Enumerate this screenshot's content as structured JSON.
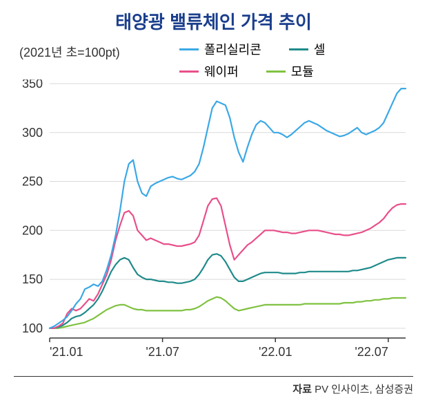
{
  "title": "태양광 밸류체인 가격 추이",
  "title_fontsize": 26,
  "title_color": "#1a3e8c",
  "subtitle": "(2021년 초=100pt)",
  "subtitle_fontsize": 18,
  "subtitle_color": "#333333",
  "legend": [
    {
      "label": "폴리실리콘",
      "color": "#3aa8e6"
    },
    {
      "label": "셀",
      "color": "#1f8a8a"
    },
    {
      "label": "웨이퍼",
      "color": "#e84f8a"
    },
    {
      "label": "모듈",
      "color": "#7fc241"
    }
  ],
  "legend_fontsize": 18,
  "chart": {
    "type": "line",
    "background_color": "#ffffff",
    "grid_color": "#d9d9d9",
    "axis_color": "#333333",
    "line_width": 2.2,
    "xlim": [
      0,
      82
    ],
    "ylim": [
      90,
      350
    ],
    "ytick_step": 50,
    "yticks": [
      100,
      150,
      200,
      250,
      300,
      350
    ],
    "xticks": [
      {
        "pos": 0,
        "label": "'21.01"
      },
      {
        "pos": 26,
        "label": "'21.07"
      },
      {
        "pos": 52,
        "label": "'22.01"
      },
      {
        "pos": 78,
        "label": "'22.07"
      }
    ],
    "series": {
      "polysilicon": {
        "color": "#3aa8e6",
        "values": [
          100,
          102,
          105,
          108,
          112,
          118,
          125,
          130,
          140,
          142,
          145,
          143,
          148,
          160,
          175,
          195,
          220,
          250,
          268,
          272,
          250,
          238,
          235,
          245,
          248,
          250,
          252,
          254,
          255,
          253,
          252,
          254,
          256,
          260,
          268,
          285,
          305,
          325,
          332,
          330,
          328,
          315,
          295,
          280,
          270,
          285,
          298,
          308,
          312,
          310,
          305,
          300,
          300,
          298,
          295,
          298,
          302,
          306,
          310,
          312,
          310,
          308,
          305,
          302,
          300,
          298,
          296,
          297,
          299,
          302,
          305,
          300,
          298,
          300,
          302,
          305,
          310,
          320,
          330,
          340,
          345,
          345
        ]
      },
      "wafer": {
        "color": "#e84f8a",
        "values": [
          100,
          100,
          102,
          105,
          115,
          120,
          118,
          120,
          125,
          130,
          128,
          135,
          145,
          155,
          170,
          190,
          205,
          218,
          220,
          215,
          200,
          195,
          190,
          192,
          190,
          188,
          186,
          186,
          185,
          184,
          184,
          185,
          186,
          188,
          195,
          210,
          225,
          232,
          233,
          225,
          205,
          185,
          170,
          175,
          180,
          185,
          188,
          192,
          196,
          200,
          200,
          200,
          199,
          198,
          198,
          197,
          197,
          198,
          199,
          200,
          200,
          200,
          199,
          198,
          197,
          196,
          196,
          195,
          195,
          196,
          197,
          198,
          200,
          202,
          205,
          208,
          212,
          218,
          223,
          226,
          227,
          227
        ]
      },
      "cell": {
        "color": "#1f8a8a",
        "values": [
          100,
          100,
          101,
          103,
          106,
          110,
          112,
          113,
          116,
          120,
          124,
          130,
          138,
          148,
          158,
          165,
          170,
          172,
          170,
          162,
          155,
          152,
          150,
          150,
          149,
          148,
          148,
          147,
          147,
          146,
          146,
          147,
          148,
          150,
          155,
          162,
          170,
          175,
          176,
          174,
          168,
          160,
          152,
          148,
          148,
          150,
          152,
          154,
          156,
          157,
          157,
          157,
          157,
          156,
          156,
          156,
          156,
          157,
          157,
          158,
          158,
          158,
          158,
          158,
          158,
          158,
          158,
          158,
          158,
          159,
          159,
          160,
          161,
          162,
          164,
          166,
          168,
          170,
          171,
          172,
          172,
          172
        ]
      },
      "module": {
        "color": "#7fc241",
        "values": [
          100,
          100,
          100,
          101,
          102,
          103,
          104,
          105,
          106,
          108,
          110,
          113,
          116,
          119,
          121,
          123,
          124,
          124,
          122,
          120,
          119,
          119,
          118,
          118,
          118,
          118,
          118,
          118,
          118,
          118,
          118,
          119,
          119,
          120,
          122,
          125,
          128,
          130,
          132,
          131,
          128,
          124,
          120,
          118,
          119,
          120,
          121,
          122,
          123,
          124,
          124,
          124,
          124,
          124,
          124,
          124,
          124,
          124,
          125,
          125,
          125,
          125,
          125,
          125,
          125,
          125,
          125,
          126,
          126,
          126,
          127,
          127,
          128,
          128,
          129,
          129,
          130,
          130,
          131,
          131,
          131,
          131
        ]
      }
    }
  },
  "footer": {
    "label": "자료",
    "text": "PV 인사이츠, 삼성증권"
  },
  "footer_color": "#333333",
  "divider_color": "#333333"
}
